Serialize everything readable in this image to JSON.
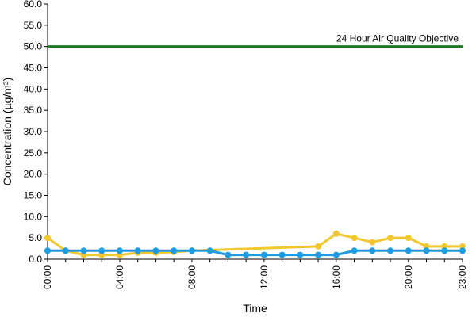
{
  "chart_data": {
    "type": "line",
    "title": "",
    "xlabel": "Time",
    "ylabel": "Concentration (µg/m³)",
    "ylim": [
      0,
      60
    ],
    "x_ticks": [
      "00:00",
      "04:00",
      "08:00",
      "12:00",
      "16:00",
      "20:00",
      "23:00"
    ],
    "y_ticks": [
      "0.0",
      "5.0",
      "10.0",
      "15.0",
      "20.0",
      "25.0",
      "30.0",
      "35.0",
      "40.0",
      "45.0",
      "50.0",
      "55.0",
      "60.0"
    ],
    "grid": false,
    "legend": "none",
    "reference_line": {
      "label": "24 Hour Air Quality Objective",
      "value": 50,
      "color": "#1e7a1e"
    },
    "series": [
      {
        "color": "#f2c72e",
        "points": [
          [
            0,
            5
          ],
          [
            1,
            2
          ],
          [
            2,
            1
          ],
          [
            3,
            1
          ],
          [
            4,
            1
          ],
          [
            5,
            1.5
          ],
          [
            6,
            1.5
          ],
          [
            7,
            1.7
          ],
          [
            8,
            2
          ],
          [
            15,
            3
          ],
          [
            16,
            6
          ],
          [
            17,
            5
          ],
          [
            18,
            4
          ],
          [
            19,
            5
          ],
          [
            20,
            5
          ],
          [
            21,
            3
          ],
          [
            22,
            3
          ],
          [
            23,
            3
          ]
        ]
      },
      {
        "color": "#1f9be0",
        "points": [
          [
            0,
            2
          ],
          [
            1,
            2
          ],
          [
            2,
            2
          ],
          [
            3,
            2
          ],
          [
            4,
            2
          ],
          [
            5,
            2
          ],
          [
            6,
            2
          ],
          [
            7,
            2
          ],
          [
            8,
            2
          ],
          [
            9,
            2
          ],
          [
            10,
            1
          ],
          [
            11,
            1
          ],
          [
            12,
            1
          ],
          [
            13,
            1
          ],
          [
            14,
            1
          ],
          [
            15,
            1
          ],
          [
            16,
            1
          ],
          [
            17,
            2
          ],
          [
            18,
            2
          ],
          [
            19,
            2
          ],
          [
            20,
            2
          ],
          [
            21,
            2
          ],
          [
            22,
            2
          ],
          [
            23,
            2
          ]
        ]
      }
    ]
  }
}
